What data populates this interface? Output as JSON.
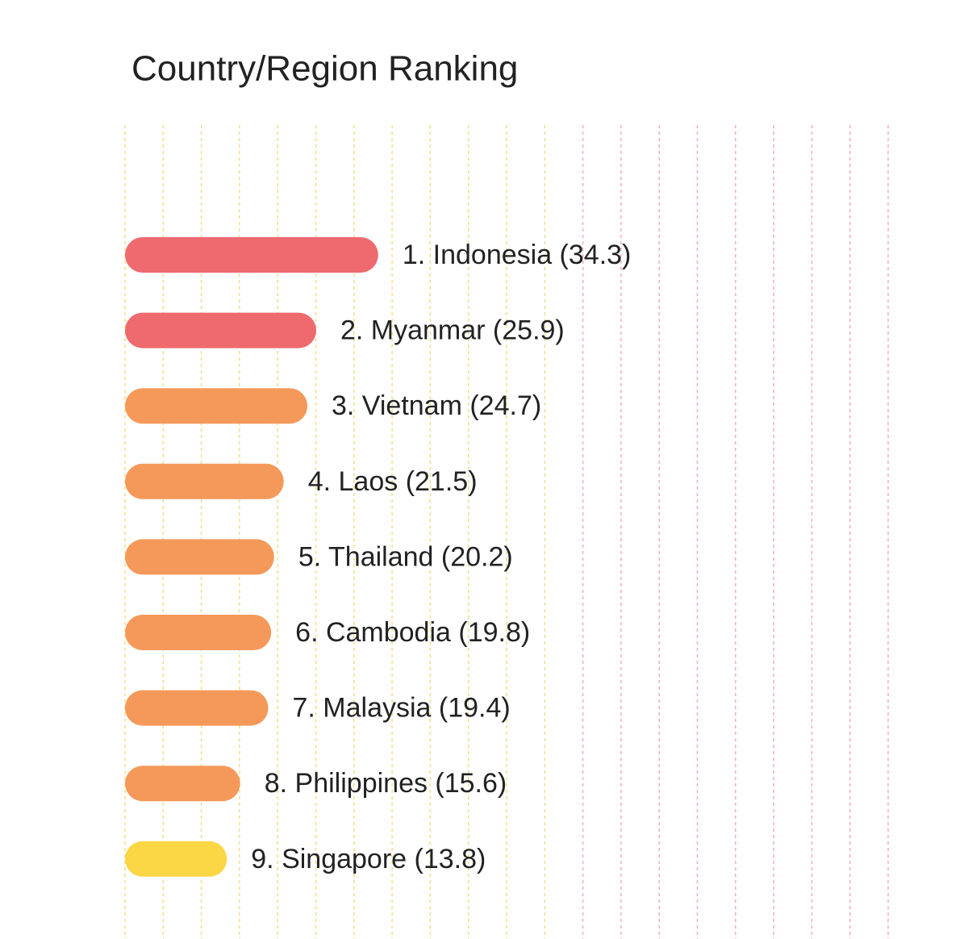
{
  "chart_data": {
    "type": "bar",
    "orientation": "horizontal",
    "title": "Country/Region Ranking",
    "values": [
      34.3,
      25.9,
      24.7,
      21.5,
      20.2,
      19.8,
      19.4,
      15.6,
      13.8
    ],
    "value_labels": [
      "1. Indonesia (34.3)",
      "2. Myanmar (25.9)",
      "3. Vietnam (24.7)",
      "4. Laos (21.5)",
      "5. Thailand (20.2)",
      "6. Cambodia (19.8)",
      "7. Malaysia (19.4)",
      "8. Philippines (15.6)",
      "9. Singapore (13.8)"
    ],
    "colors": [
      "#ee6a6e",
      "#ee6a6e",
      "#f4995a",
      "#f4995a",
      "#f4995a",
      "#f4995a",
      "#f4995a",
      "#f4995a",
      "#fbd645"
    ]
  }
}
